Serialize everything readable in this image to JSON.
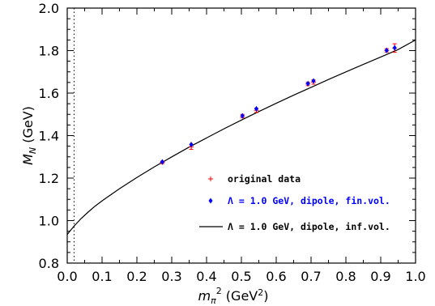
{
  "chart_data": {
    "type": "scatter",
    "xlabel": "m_π² (GeV²)",
    "ylabel": "M_N (GeV)",
    "xlim": [
      0.0,
      1.0
    ],
    "ylim": [
      0.8,
      2.0
    ],
    "xticks": [
      "0.0",
      "0.1",
      "0.2",
      "0.3",
      "0.4",
      "0.5",
      "0.6",
      "0.7",
      "0.8",
      "0.9",
      "1.0"
    ],
    "yticks": [
      "0.8",
      "1.0",
      "1.2",
      "1.4",
      "1.6",
      "1.8",
      "2.0"
    ],
    "physical_point_line_x": 0.0196,
    "legend_position": "lower-right",
    "series": [
      {
        "name": "original data",
        "marker": "cross",
        "color": "#ff0000",
        "x": [
          0.273,
          0.356,
          0.503,
          0.543,
          0.691,
          0.707,
          0.917,
          0.94
        ],
        "y": [
          1.274,
          1.347,
          1.492,
          1.519,
          1.643,
          1.652,
          1.801,
          1.812
        ],
        "yerr": [
          0.006,
          0.012,
          0.008,
          0.01,
          0.008,
          0.01,
          0.008,
          0.02
        ]
      },
      {
        "name": "Λ = 1.0 GeV, dipole, fin.vol.",
        "marker": "diamond",
        "color": "#0000ff",
        "x": [
          0.273,
          0.356,
          0.503,
          0.543,
          0.691,
          0.707,
          0.917,
          0.94
        ],
        "y": [
          1.276,
          1.358,
          1.493,
          1.526,
          1.645,
          1.657,
          1.801,
          1.813
        ]
      },
      {
        "name": "Λ = 1.0 GeV, dipole, inf.vol.",
        "line": "solid",
        "color": "#000000",
        "x": [
          0.0,
          0.01,
          0.02,
          0.04,
          0.06,
          0.08,
          0.1,
          0.15,
          0.2,
          0.25,
          0.3,
          0.35,
          0.4,
          0.45,
          0.5,
          0.55,
          0.6,
          0.65,
          0.7,
          0.75,
          0.8,
          0.85,
          0.9,
          0.95,
          1.0
        ],
        "y": [
          0.935,
          0.955,
          0.975,
          1.01,
          1.04,
          1.068,
          1.093,
          1.15,
          1.203,
          1.253,
          1.3,
          1.346,
          1.389,
          1.432,
          1.473,
          1.513,
          1.552,
          1.59,
          1.627,
          1.664,
          1.7,
          1.735,
          1.77,
          1.805,
          1.85
        ]
      }
    ]
  }
}
